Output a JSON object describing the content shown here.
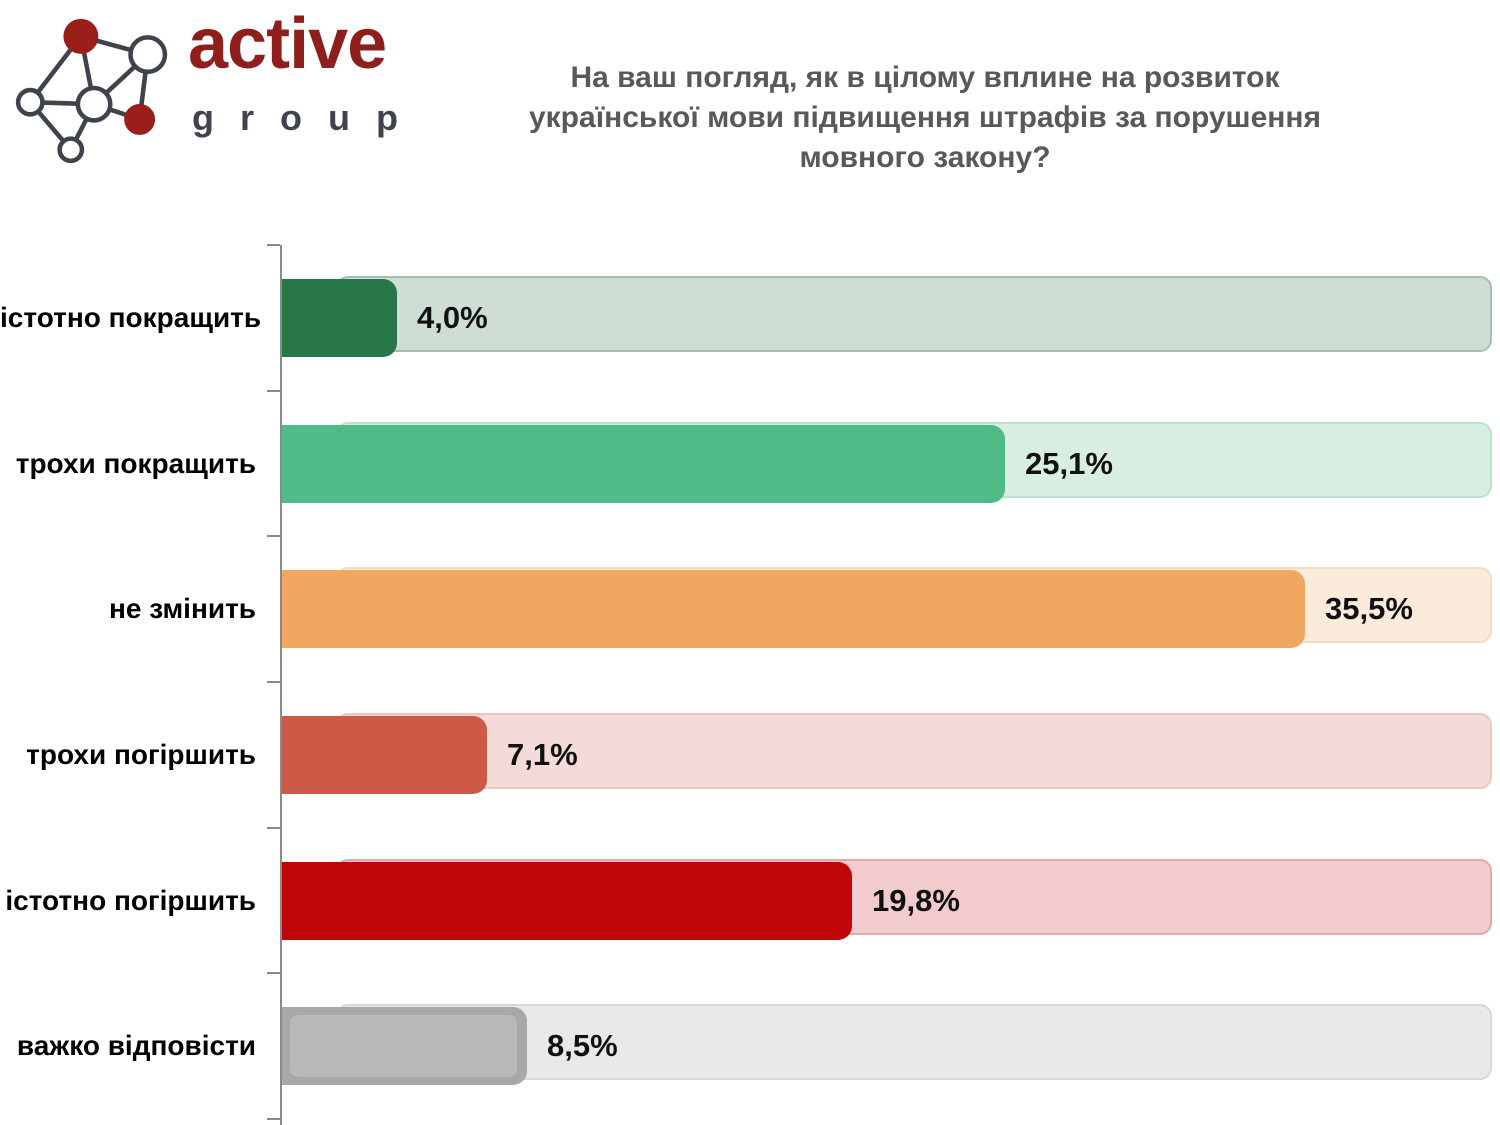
{
  "logo": {
    "brand": "active",
    "sub": "group",
    "brand_color": "#8E1F1C",
    "sub_color": "#3F434C",
    "node_red": "#9A1F1B",
    "line_color": "#3F444C"
  },
  "title": {
    "line1": "На ваш погляд, як в цілому вплине на розвиток",
    "line2": "української мови підвищення штрафів за порушення",
    "line3": "мовного закону?",
    "color": "#595959"
  },
  "chart_data": {
    "type": "bar",
    "orientation": "horizontal",
    "unit": "%",
    "axis_max": 42,
    "grid": false,
    "legend": false,
    "axis_color": "#8a8a8a",
    "categories": [
      "істотно покращить",
      "трохи покращить",
      "не змінить",
      "трохи погіршить",
      "істотно погіршить",
      "важко відповісти"
    ],
    "values": [
      4.0,
      25.1,
      35.5,
      7.1,
      19.8,
      8.5
    ],
    "rows": [
      {
        "label": "істотно покращить",
        "value": 4.0,
        "value_label": "4,0%",
        "fill": "#277749",
        "track": "#CEDED5",
        "track_border": "#A3BFAF"
      },
      {
        "label": "трохи покращить",
        "value": 25.1,
        "value_label": "25,1%",
        "fill": "#4FBB87",
        "track": "#D8EEE0",
        "track_border": "#BCE2CB"
      },
      {
        "label": "не змінить",
        "value": 35.5,
        "value_label": "35,5%",
        "fill": "#F2A761",
        "track": "#FBEBDB",
        "track_border": "#F4DCC3"
      },
      {
        "label": "трохи погіршить",
        "value": 7.1,
        "value_label": "7,1%",
        "fill": "#CC5A47",
        "track": "#F4DBD7",
        "track_border": "#EBC7C0"
      },
      {
        "label": "істотно погіршить",
        "value": 19.8,
        "value_label": "19,8%",
        "fill": "#C00609",
        "track": "#F2CBCE",
        "track_border": "#E2A8AC"
      },
      {
        "label": "важко відповісти",
        "value": 8.5,
        "value_label": "8,5%",
        "fill": "#A8A8A8",
        "track": "#E9E9E8",
        "track_border": "#D7D7D6",
        "inner": "#B9B9B9"
      }
    ]
  }
}
